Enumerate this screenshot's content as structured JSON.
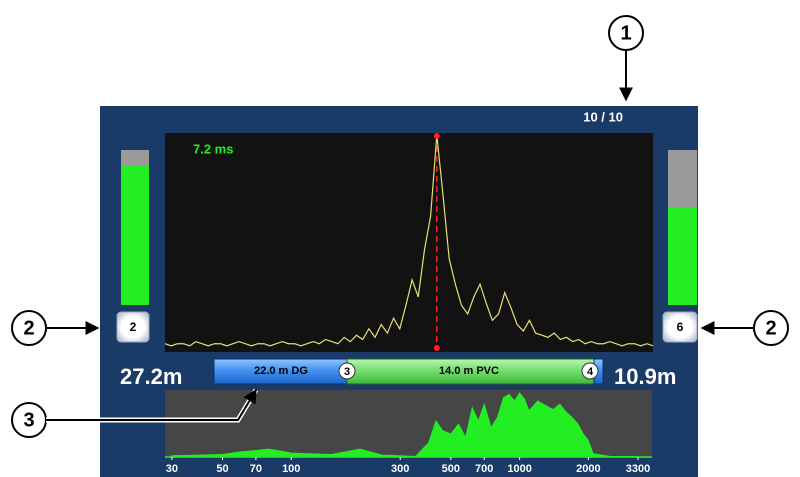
{
  "callouts": [
    "1",
    "2",
    "2",
    "3"
  ],
  "counter": "10 / 10",
  "delay": "7.2 ms",
  "left_sensor": {
    "level": 90,
    "gain": "2",
    "distance": "27.2m"
  },
  "right_sensor": {
    "level": 63,
    "gain": "6",
    "distance": "10.9m"
  },
  "pipe": {
    "segments": [
      "22.0 m DG",
      "14.0 m PVC"
    ],
    "nodes": [
      "3",
      "4"
    ]
  },
  "correlation": {
    "color": "#e8e070",
    "marker_color": "#ff2020",
    "ylim": [
      0,
      100
    ],
    "values": [
      2,
      1,
      2,
      2,
      1,
      3,
      2,
      1,
      2,
      2,
      1,
      2,
      3,
      2,
      1,
      2,
      2,
      1,
      2,
      3,
      2,
      2,
      1,
      2,
      3,
      2,
      4,
      3,
      2,
      5,
      3,
      6,
      4,
      9,
      5,
      11,
      7,
      14,
      9,
      20,
      32,
      24,
      46,
      62,
      100,
      72,
      42,
      30,
      20,
      16,
      24,
      30,
      21,
      13,
      16,
      26,
      19,
      11,
      8,
      13,
      7,
      6,
      5,
      7,
      4,
      5,
      3,
      4,
      2,
      3,
      2,
      2,
      3,
      2,
      1,
      2,
      2,
      1,
      2,
      1
    ]
  },
  "spectrum": {
    "color": "#22ee22",
    "log_x": true,
    "xlim": [
      28,
      3800
    ],
    "ylim": [
      0,
      100
    ],
    "xticks": [
      30,
      50,
      70,
      100,
      300,
      500,
      700,
      1000,
      2000,
      3300
    ],
    "x": [
      30,
      40,
      50,
      60,
      70,
      80,
      90,
      100,
      120,
      150,
      200,
      250,
      300,
      350,
      400,
      430,
      460,
      500,
      540,
      580,
      620,
      660,
      700,
      750,
      800,
      850,
      900,
      950,
      1000,
      1050,
      1100,
      1200,
      1300,
      1400,
      1500,
      1600,
      1700,
      1800,
      1900,
      2000,
      2100,
      2500,
      3300
    ],
    "values": [
      2,
      3,
      4,
      8,
      10,
      12,
      9,
      6,
      5,
      4,
      12,
      3,
      2,
      1,
      22,
      55,
      40,
      35,
      50,
      30,
      75,
      55,
      80,
      45,
      60,
      90,
      95,
      85,
      97,
      88,
      70,
      85,
      78,
      72,
      80,
      68,
      60,
      50,
      35,
      25,
      5,
      1,
      1
    ]
  }
}
